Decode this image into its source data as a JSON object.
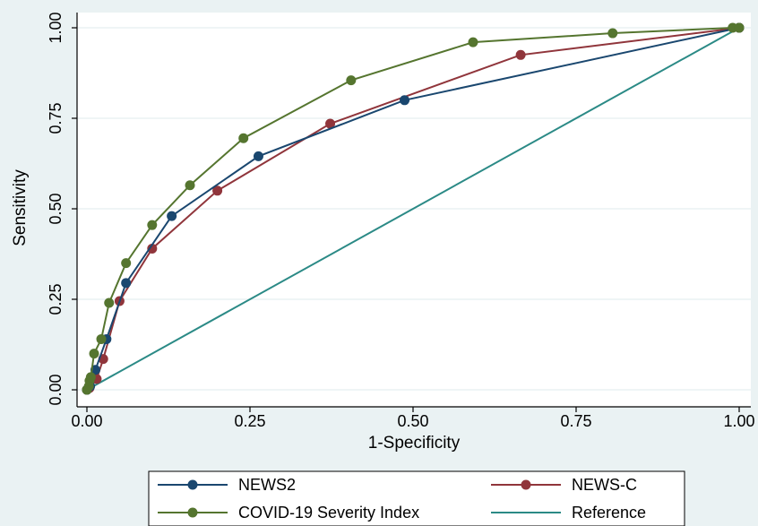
{
  "chart_data": {
    "type": "line",
    "xlabel": "1-Specificity",
    "ylabel": "Sensitivity",
    "xlim": [
      0,
      1
    ],
    "ylim": [
      0,
      1
    ],
    "xticks": [
      "0.00",
      "0.25",
      "0.50",
      "0.75",
      "1.00"
    ],
    "yticks": [
      "0.00",
      "0.25",
      "0.50",
      "0.75",
      "1.00"
    ],
    "grid": "horizontal",
    "legend_position": "bottom",
    "series": [
      {
        "name": "NEWS2",
        "color": "#1a476f",
        "markers": true,
        "points": [
          [
            0,
            0
          ],
          [
            0.005,
            0.01
          ],
          [
            0.013,
            0.055
          ],
          [
            0.03,
            0.14
          ],
          [
            0.06,
            0.295
          ],
          [
            0.13,
            0.48
          ],
          [
            0.263,
            0.645
          ],
          [
            0.487,
            0.8
          ],
          [
            1.0,
            1.0
          ]
        ]
      },
      {
        "name": "NEWS-C",
        "color": "#90353b",
        "markers": true,
        "points": [
          [
            0,
            0
          ],
          [
            0.004,
            0.005
          ],
          [
            0.015,
            0.03
          ],
          [
            0.025,
            0.085
          ],
          [
            0.05,
            0.245
          ],
          [
            0.1,
            0.39
          ],
          [
            0.2,
            0.55
          ],
          [
            0.373,
            0.735
          ],
          [
            0.665,
            0.925
          ],
          [
            1.0,
            1.0
          ]
        ]
      },
      {
        "name": "COVID-19 Severity Index",
        "color": "#55752f",
        "markers": true,
        "points": [
          [
            0,
            0
          ],
          [
            0.003,
            0.01
          ],
          [
            0.004,
            0.025
          ],
          [
            0.006,
            0.035
          ],
          [
            0.011,
            0.1
          ],
          [
            0.022,
            0.14
          ],
          [
            0.034,
            0.24
          ],
          [
            0.06,
            0.35
          ],
          [
            0.1,
            0.455
          ],
          [
            0.158,
            0.565
          ],
          [
            0.24,
            0.695
          ],
          [
            0.405,
            0.855
          ],
          [
            0.592,
            0.96
          ],
          [
            0.806,
            0.985
          ],
          [
            0.99,
            1.0
          ],
          [
            1.0,
            1.0
          ]
        ]
      },
      {
        "name": "Reference",
        "color": "#2b8a86",
        "markers": false,
        "points": [
          [
            0,
            0
          ],
          [
            1,
            1
          ]
        ]
      }
    ]
  }
}
